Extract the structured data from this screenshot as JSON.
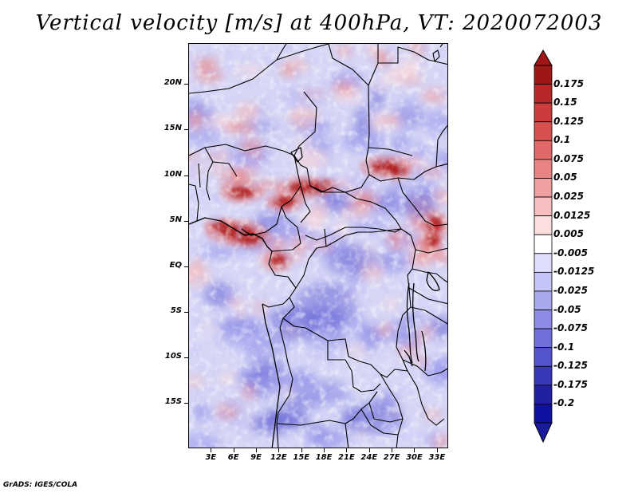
{
  "title": "Vertical velocity [m/s] at 400hPa, VT: 2020072003",
  "credit": "GrADS: IGES/COLA",
  "map": {
    "lat_labels": [
      "20N",
      "15N",
      "10N",
      "5N",
      "EQ",
      "5S",
      "10S",
      "15S"
    ],
    "lon_labels": [
      "3E",
      "6E",
      "9E",
      "12E",
      "15E",
      "18E",
      "21E",
      "24E",
      "27E",
      "30E",
      "33E"
    ],
    "lat_values": [
      20,
      15,
      10,
      5,
      0,
      -5,
      -10,
      -15
    ],
    "lon_values": [
      3,
      6,
      9,
      12,
      15,
      18,
      21,
      24,
      27,
      30,
      33
    ],
    "lat_range": [
      -20,
      24.5
    ],
    "lon_range": [
      0,
      34.5
    ],
    "field": "vertical velocity",
    "level": "400hPa",
    "units": "m/s",
    "valid_time": "2020072003"
  },
  "colorbar": {
    "labels": [
      "0.175",
      "0.15",
      "0.125",
      "0.1",
      "0.075",
      "0.05",
      "0.025",
      "0.0125",
      "0.005",
      "-0.005",
      "-0.0125",
      "-0.025",
      "-0.05",
      "-0.075",
      "-0.1",
      "-0.125",
      "-0.175",
      "-0.2"
    ],
    "colors": [
      "#a01616",
      "#b82828",
      "#cc3c3c",
      "#d85050",
      "#e06868",
      "#e88484",
      "#f0a0a0",
      "#f6bebe",
      "#fcdede",
      "#ffffff",
      "#dedefc",
      "#c4c4f6",
      "#a8a8ee",
      "#8c8ce6",
      "#7070dc",
      "#5454cc",
      "#3838b8",
      "#2020a0",
      "#1010a0"
    ],
    "top_arrow_color": "#a01616",
    "bottom_arrow_color": "#1a1a9c"
  }
}
